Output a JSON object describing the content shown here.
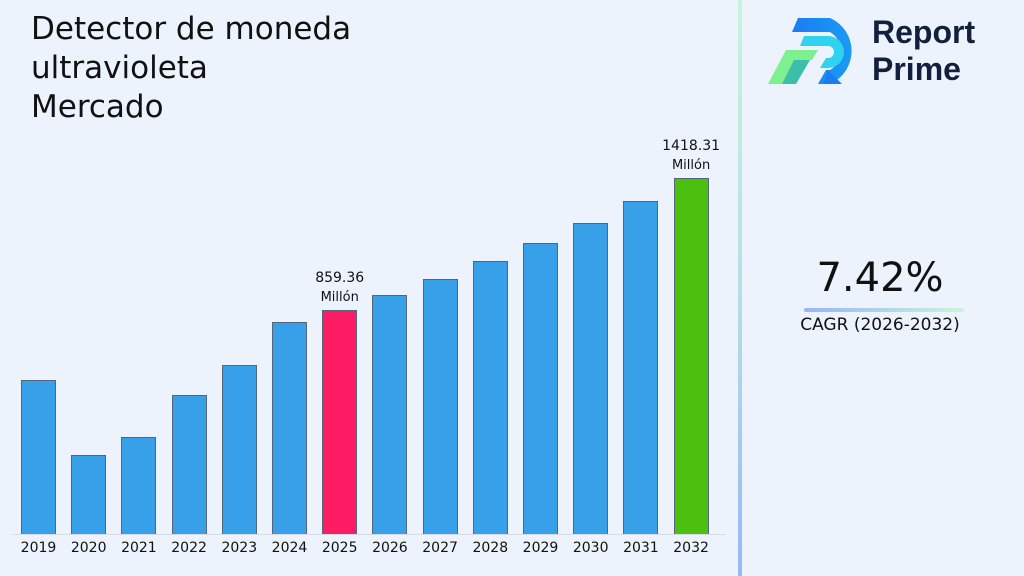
{
  "header": {
    "title": "Detector de moneda\nultravioleta\nMercado"
  },
  "brand": {
    "name_line1": "Report",
    "name_line2": "Prime"
  },
  "cagr": {
    "value": "7.42%",
    "label": "CAGR (2026-2032)"
  },
  "annotations": [
    {
      "year": "2025",
      "value": "859.36",
      "unit": "Millón"
    },
    {
      "year": "2032",
      "value": "1418.31",
      "unit": "Millón"
    }
  ],
  "colors": {
    "default_bar": "#38a0e8",
    "highlight_2025": "#fc1c64",
    "highlight_2032": "#4cc00e",
    "background": "#edf3fd"
  },
  "chart_data": {
    "type": "bar",
    "title": "Detector de moneda ultravioleta Mercado",
    "xlabel": "",
    "ylabel": "",
    "unit": "Millón",
    "categories": [
      "2019",
      "2020",
      "2021",
      "2022",
      "2023",
      "2024",
      "2025",
      "2026",
      "2027",
      "2028",
      "2029",
      "2030",
      "2031",
      "2032"
    ],
    "values": [
      563,
      245,
      322,
      500,
      627,
      809,
      859.36,
      923.1,
      991.6,
      1065.2,
      1144.2,
      1229.1,
      1320.3,
      1418.31
    ],
    "bar_colors": [
      "#38a0e8",
      "#38a0e8",
      "#38a0e8",
      "#38a0e8",
      "#38a0e8",
      "#38a0e8",
      "#fc1c64",
      "#38a0e8",
      "#38a0e8",
      "#38a0e8",
      "#38a0e8",
      "#38a0e8",
      "#38a0e8",
      "#4cc00e"
    ],
    "data_labels": {
      "2025": "859.36 Millón",
      "2032": "1418.31 Millón"
    },
    "cagr": "7.42%",
    "cagr_period": "2026-2032",
    "grid": false,
    "legend": "none"
  }
}
